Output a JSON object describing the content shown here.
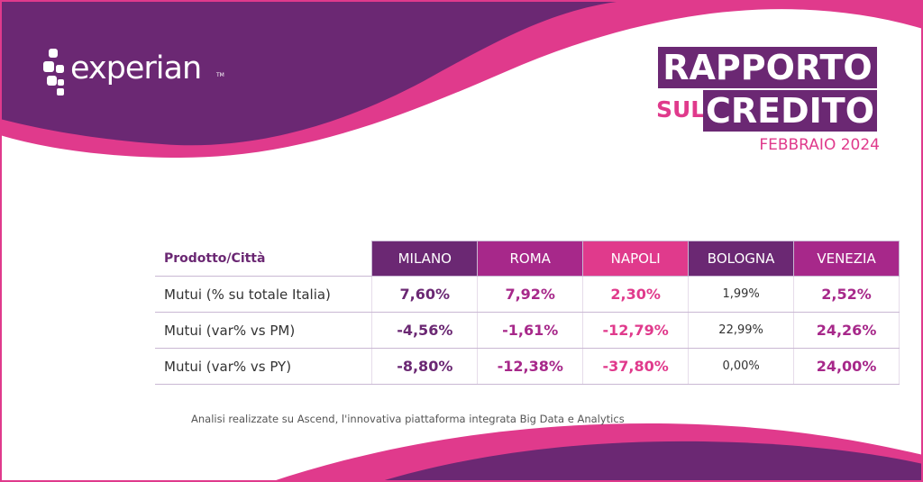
{
  "brand": {
    "logo_text": "experian",
    "logo_tm": "TM"
  },
  "report": {
    "title_line1": "RAPPORTO",
    "title_sul": "SUL",
    "title_line2": "CREDITO",
    "date": "FEBBRAIO 2024"
  },
  "table": {
    "corner_label": "Prodotto/Città",
    "columns": [
      {
        "label": "MILANO",
        "color": "#6b2873",
        "value_color": "#6b2873"
      },
      {
        "label": "ROMA",
        "color": "#a7288a",
        "value_color": "#a7288a"
      },
      {
        "label": "NAPOLI",
        "color": "#e03a8c",
        "value_color": "#e03a8c"
      },
      {
        "label": "BOLOGNA",
        "color": "#6b2873",
        "value_color": "#333333"
      },
      {
        "label": "VENEZIA",
        "color": "#a7288a",
        "value_color": "#a7288a"
      }
    ],
    "rows": [
      {
        "label": "Mutui  (% su totale Italia)",
        "values": [
          "7,60%",
          "7,92%",
          "2,30%",
          "1,99%",
          "2,52%"
        ]
      },
      {
        "label": "Mutui (var% vs PM)",
        "values": [
          "-4,56%",
          "-1,61%",
          "-12,79%",
          "22,99%",
          "24,26%"
        ]
      },
      {
        "label": "Mutui (var% vs PY)",
        "values": [
          "-8,80%",
          "-12,38%",
          "-37,80%",
          "0,00%",
          "24,00%"
        ]
      }
    ]
  },
  "footnote": "Analisi realizzate su Ascend, l'innovativa piattaforma integrata Big Data e Analytics",
  "colors": {
    "purple": "#6b2873",
    "magenta": "#a7288a",
    "pink": "#e03a8c"
  }
}
